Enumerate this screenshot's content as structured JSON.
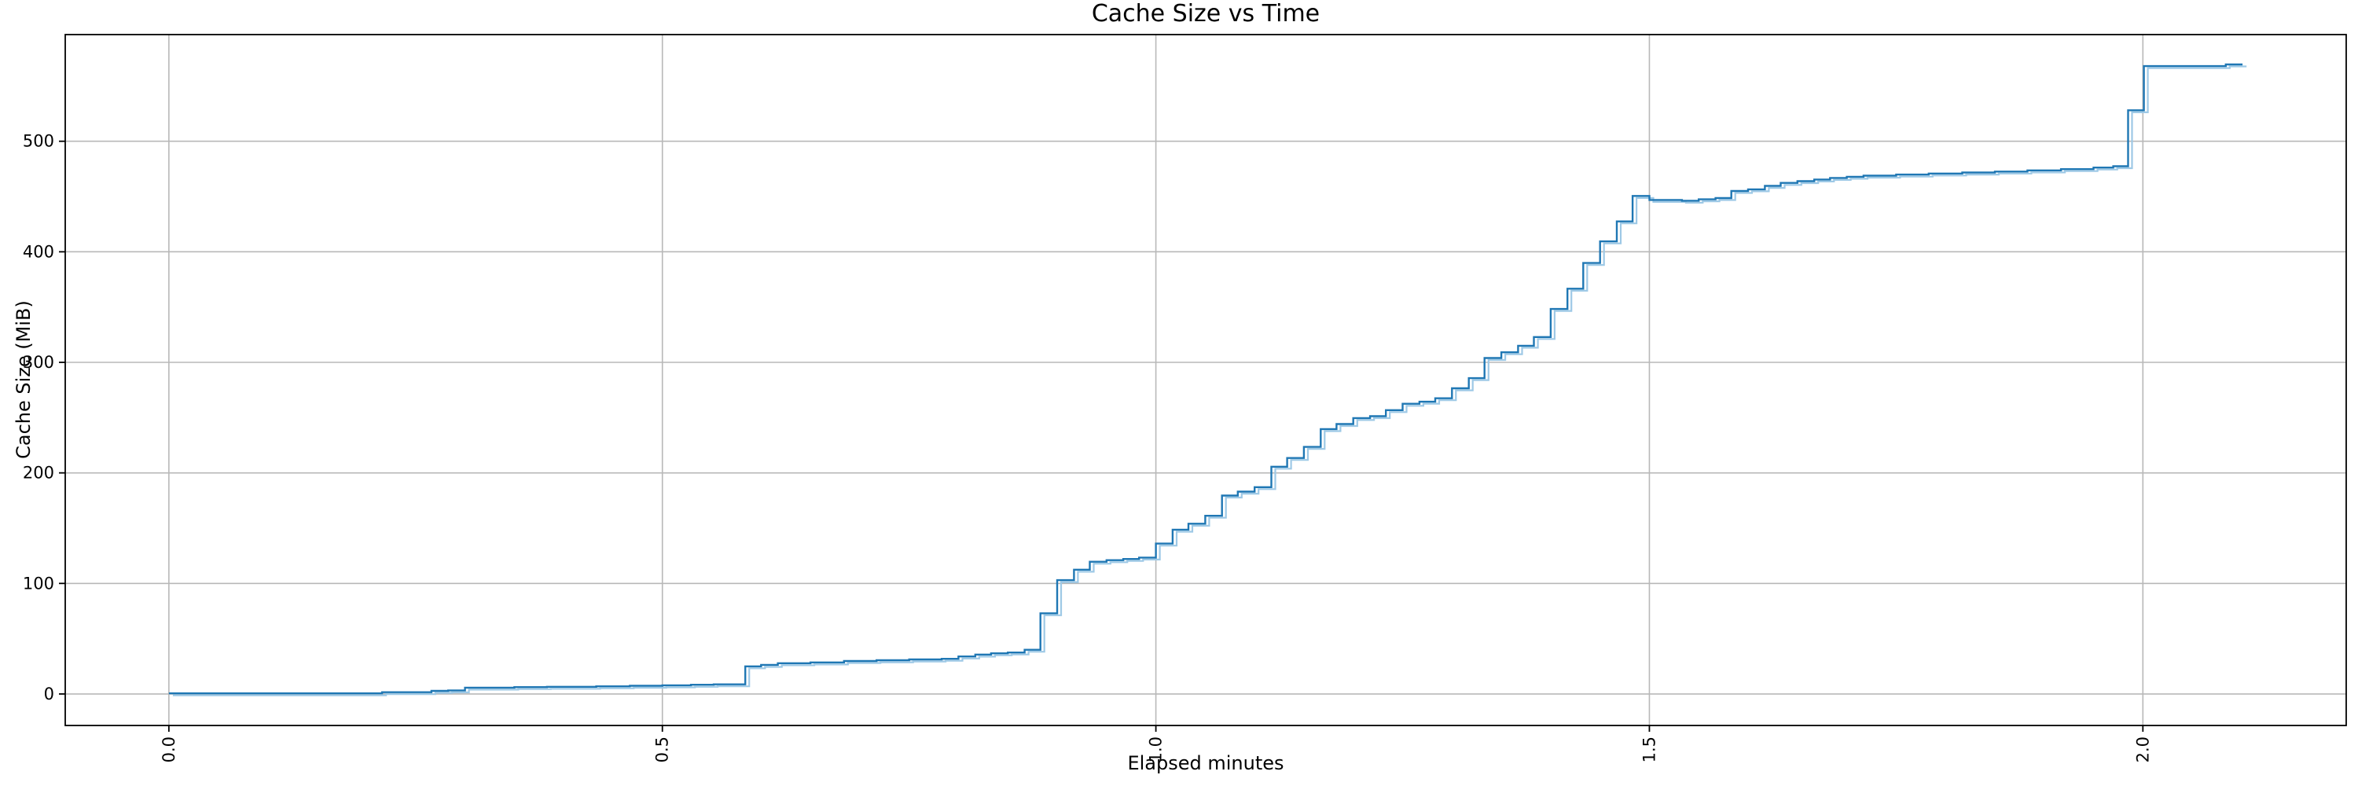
{
  "chart_data": {
    "type": "line",
    "subtype": "step-post",
    "title": "Cache Size vs Time",
    "xlabel": "Elapsed minutes",
    "ylabel": "Cache Size (MiB)",
    "xlim": [
      -0.105,
      2.206
    ],
    "ylim": [
      -28.5,
      596.5
    ],
    "grid": true,
    "legend": "none",
    "xticks": {
      "values": [
        0.0,
        0.5,
        1.0,
        1.5,
        2.0
      ],
      "labels": [
        "0.0",
        "0.5",
        "1.0",
        "1.5",
        "2.0"
      ],
      "rotation": 90
    },
    "yticks": {
      "values": [
        0,
        100,
        200,
        300,
        400,
        500
      ],
      "labels": [
        "0",
        "100",
        "200",
        "300",
        "400",
        "500"
      ]
    },
    "colors": {
      "line": "#1f77b4",
      "line_shadow": "#9ec9e6",
      "grid": "#b8b8b8",
      "spine": "#000000",
      "background": "#ffffff"
    },
    "shadow_offset": {
      "dx": 0.004,
      "dy": -1.8
    },
    "series": [
      {
        "name": "cache_size_mib",
        "color": "#1f77b4",
        "points": [
          [
            0.0,
            0.6
          ],
          [
            0.216,
            1.6
          ],
          [
            0.266,
            2.8
          ],
          [
            0.283,
            3.2
          ],
          [
            0.3,
            5.7
          ],
          [
            0.35,
            6.2
          ],
          [
            0.383,
            6.5
          ],
          [
            0.433,
            6.9
          ],
          [
            0.467,
            7.4
          ],
          [
            0.5,
            7.8
          ],
          [
            0.529,
            8.3
          ],
          [
            0.552,
            8.7
          ],
          [
            0.584,
            25.0
          ],
          [
            0.6,
            26.3
          ],
          [
            0.617,
            27.8
          ],
          [
            0.65,
            28.5
          ],
          [
            0.684,
            29.8
          ],
          [
            0.717,
            30.5
          ],
          [
            0.75,
            31.2
          ],
          [
            0.783,
            31.8
          ],
          [
            0.8,
            33.9
          ],
          [
            0.817,
            35.6
          ],
          [
            0.833,
            36.8
          ],
          [
            0.85,
            37.5
          ],
          [
            0.867,
            40.0
          ],
          [
            0.883,
            73.0
          ],
          [
            0.9,
            103.0
          ],
          [
            0.917,
            112.4
          ],
          [
            0.933,
            119.6
          ],
          [
            0.95,
            121.0
          ],
          [
            0.967,
            122.1
          ],
          [
            0.983,
            123.4
          ],
          [
            1.0,
            136.0
          ],
          [
            1.017,
            148.6
          ],
          [
            1.033,
            154.0
          ],
          [
            1.05,
            161.2
          ],
          [
            1.067,
            179.5
          ],
          [
            1.083,
            183.0
          ],
          [
            1.1,
            187.1
          ],
          [
            1.117,
            205.6
          ],
          [
            1.133,
            213.5
          ],
          [
            1.15,
            223.5
          ],
          [
            1.167,
            239.6
          ],
          [
            1.183,
            244.2
          ],
          [
            1.2,
            249.6
          ],
          [
            1.217,
            251.3
          ],
          [
            1.233,
            256.8
          ],
          [
            1.25,
            262.5
          ],
          [
            1.267,
            264.4
          ],
          [
            1.283,
            267.5
          ],
          [
            1.3,
            276.5
          ],
          [
            1.317,
            285.7
          ],
          [
            1.333,
            303.9
          ],
          [
            1.35,
            309.1
          ],
          [
            1.367,
            315.0
          ],
          [
            1.383,
            322.9
          ],
          [
            1.4,
            348.3
          ],
          [
            1.417,
            366.6
          ],
          [
            1.433,
            389.9
          ],
          [
            1.45,
            409.4
          ],
          [
            1.467,
            427.5
          ],
          [
            1.483,
            450.5
          ],
          [
            1.5,
            446.9
          ],
          [
            1.533,
            446.2
          ],
          [
            1.55,
            447.5
          ],
          [
            1.567,
            448.6
          ],
          [
            1.583,
            455.0
          ],
          [
            1.6,
            456.5
          ],
          [
            1.617,
            459.6
          ],
          [
            1.633,
            462.3
          ],
          [
            1.65,
            463.9
          ],
          [
            1.667,
            465.4
          ],
          [
            1.683,
            466.8
          ],
          [
            1.7,
            467.9
          ],
          [
            1.717,
            468.9
          ],
          [
            1.75,
            469.9
          ],
          [
            1.783,
            470.8
          ],
          [
            1.817,
            471.7
          ],
          [
            1.85,
            472.6
          ],
          [
            1.883,
            473.6
          ],
          [
            1.917,
            474.8
          ],
          [
            1.95,
            476.2
          ],
          [
            1.97,
            477.4
          ],
          [
            1.985,
            528.0
          ],
          [
            2.001,
            568.0
          ],
          [
            2.084,
            569.5
          ],
          [
            2.101,
            569.5
          ]
        ]
      }
    ]
  }
}
